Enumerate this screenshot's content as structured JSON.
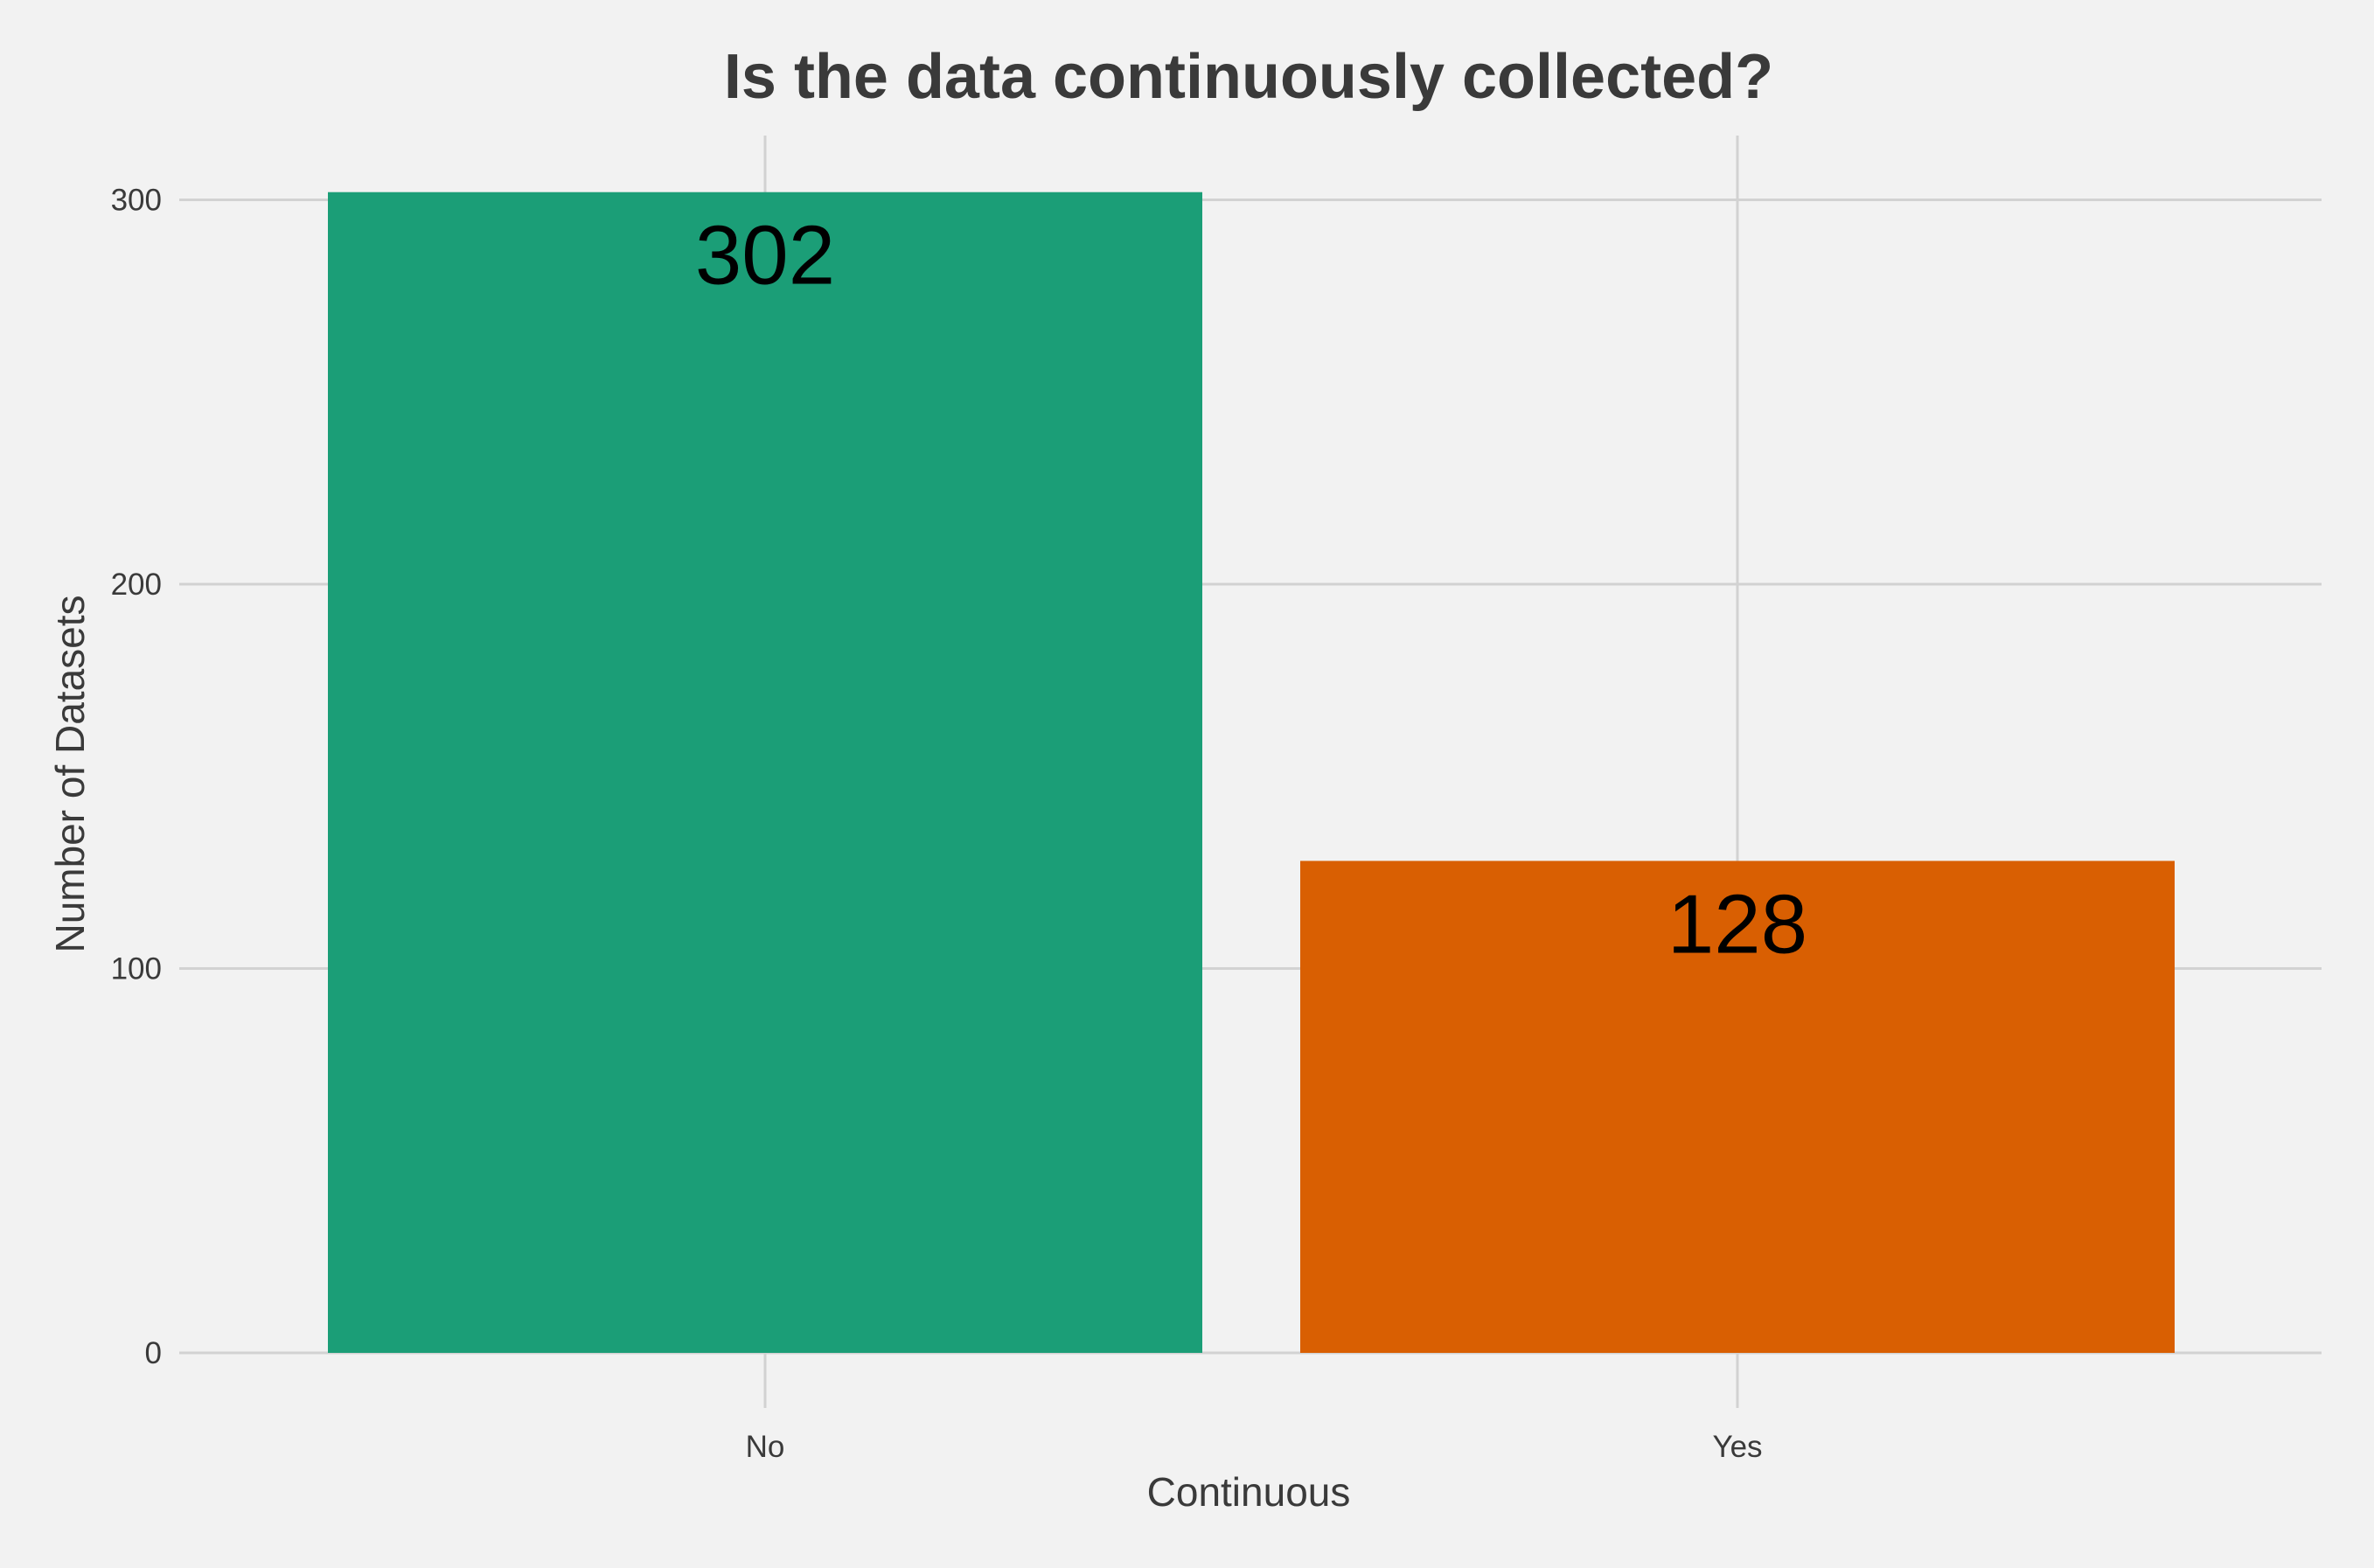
{
  "chart_data": {
    "type": "bar",
    "title": "Is the data continuously collected?",
    "xlabel": "Continuous",
    "ylabel": "Number of Datasets",
    "categories": [
      "No",
      "Yes"
    ],
    "values": [
      302,
      128
    ],
    "data_labels": [
      "302",
      "128"
    ],
    "colors": [
      "#1b9e77",
      "#d95f02"
    ],
    "ylim": [
      0,
      320
    ],
    "yticks": [
      0,
      100,
      200,
      300
    ],
    "ytick_labels": [
      "0",
      "100",
      "200",
      "300"
    ],
    "grid": true,
    "legend": "none"
  }
}
